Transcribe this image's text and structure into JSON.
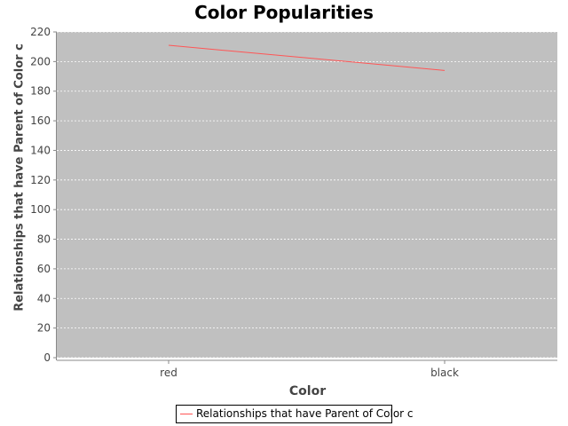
{
  "chart_data": {
    "type": "line",
    "title": "Color Popularities",
    "xlabel": "Color",
    "ylabel": "Relationships that have Parent of Color c",
    "categories": [
      "red",
      "black"
    ],
    "series": [
      {
        "name": "Relationships that have Parent of Color c",
        "values": [
          211,
          194
        ],
        "color": "#ff5555"
      }
    ],
    "ylim": [
      0,
      220
    ],
    "yticks": [
      0,
      20,
      40,
      60,
      80,
      100,
      120,
      140,
      160,
      180,
      200,
      220
    ],
    "grid": true,
    "legend": "bottom",
    "plot_background": "#c0c0c0"
  }
}
